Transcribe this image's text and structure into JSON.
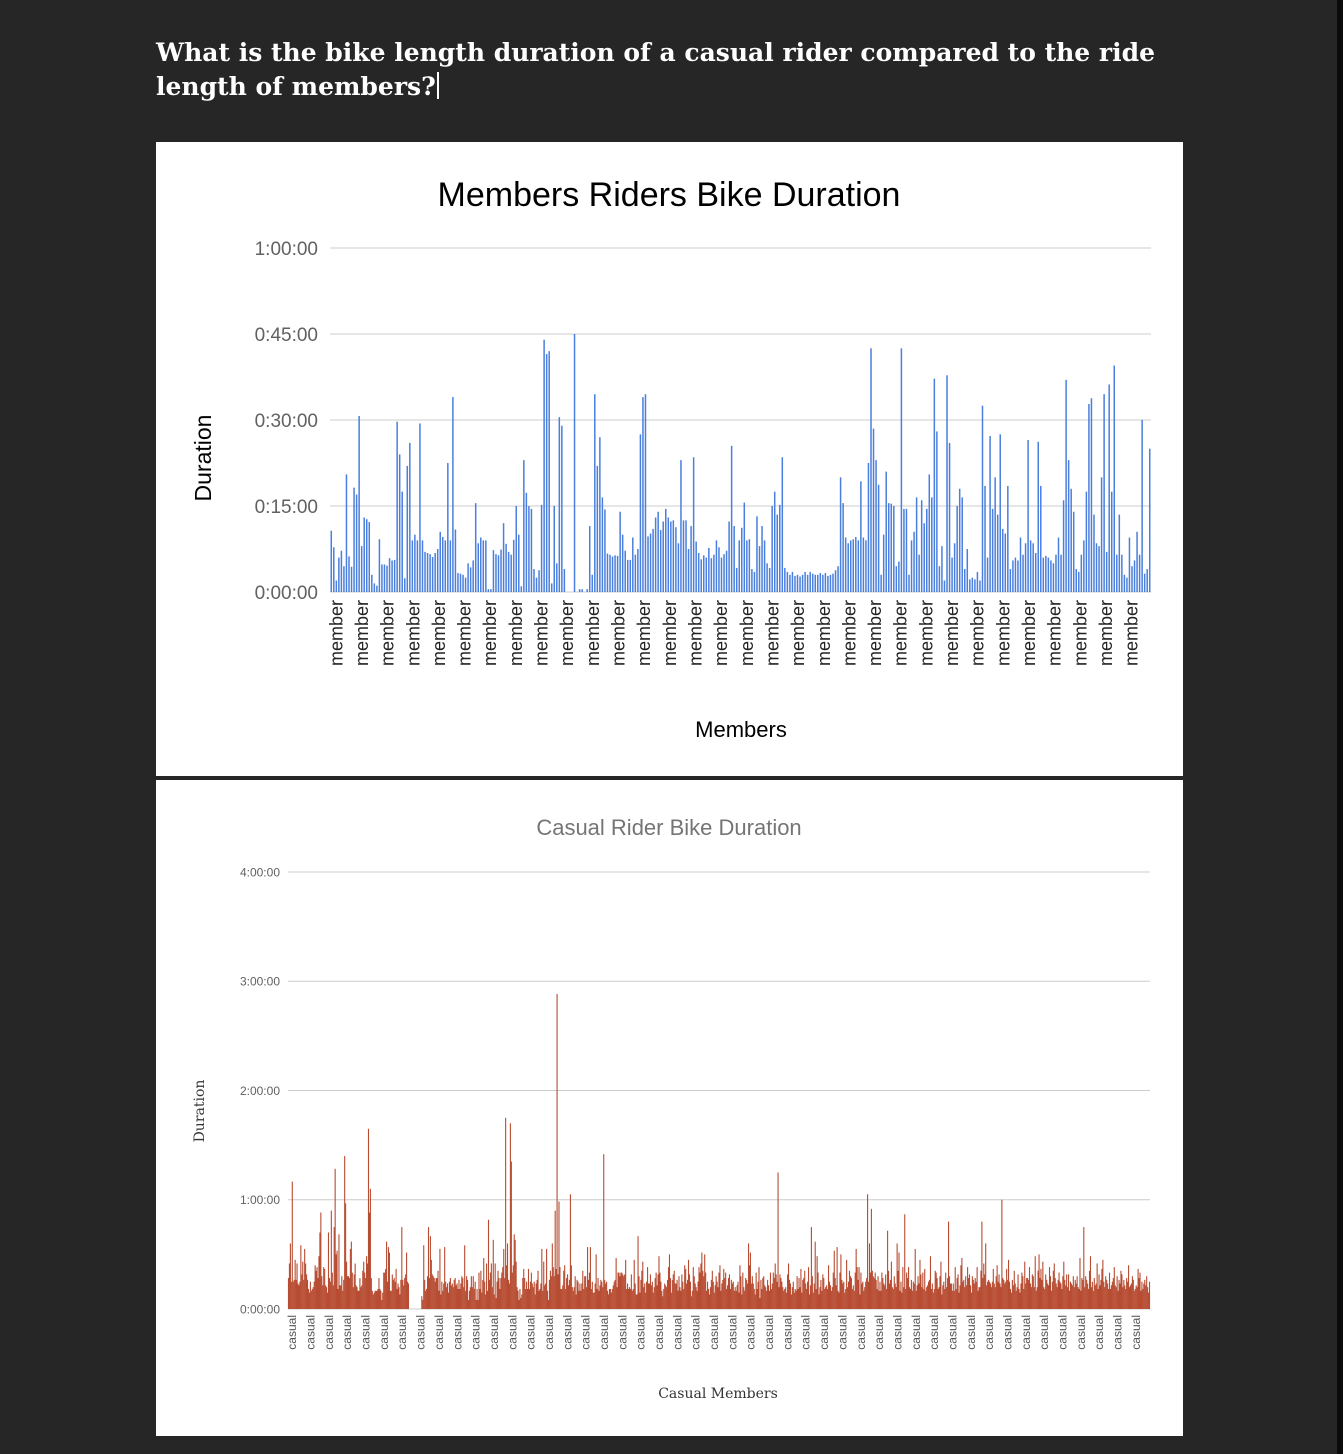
{
  "heading": "What is the bike length duration of a casual rider compared to the ride length of members?",
  "colors": {
    "page_bg": "#262626",
    "card_bg": "#ffffff",
    "member_bar": "#4a7fdd",
    "casual_bar": "#b74c32",
    "grid": "#cccccc"
  },
  "chart_data": [
    {
      "type": "bar",
      "title": "Members Riders Bike Duration",
      "xlabel": "Members",
      "ylabel": "Duration",
      "y_unit": "minutes",
      "ylim": [
        0,
        60
      ],
      "yticks": [
        0,
        15,
        30,
        45,
        60
      ],
      "ytick_labels": [
        "0:00:00",
        "0:15:00",
        "0:30:00",
        "0:45:00",
        "1:00:00"
      ],
      "category_label": "member",
      "category_label_count": 32,
      "grid": true,
      "legend": "none",
      "values": [
        10.7,
        7.8,
        2,
        6,
        7.2,
        4.5,
        20.5,
        6.2,
        4.4,
        18.2,
        17,
        30.7,
        8,
        13,
        12.7,
        12.2,
        3,
        1.5,
        1.1,
        9.2,
        4.8,
        4.8,
        4.6,
        5.9,
        5.5,
        5.6,
        29.7,
        24,
        17.5,
        2.4,
        22,
        26,
        9,
        10,
        9,
        29.4,
        9,
        7,
        6.8,
        6.6,
        6.1,
        6.8,
        7.5,
        10.5,
        9.6,
        9,
        22.5,
        9,
        34,
        10.9,
        3.3,
        3.2,
        3,
        2.5,
        5,
        4.3,
        5.5,
        15.5,
        8.5,
        9.5,
        9,
        9,
        0.5,
        0.5,
        7.3,
        6.6,
        6.4,
        7.4,
        12,
        8.4,
        7,
        6.5,
        9.1,
        15,
        10,
        1,
        23,
        17.3,
        15,
        14.5,
        4,
        2.5,
        3.8,
        15.2,
        44,
        41.5,
        42,
        1.5,
        15,
        5,
        30.5,
        29,
        4,
        0,
        0,
        0,
        45,
        0,
        0.5,
        0.5,
        0,
        0.5,
        11.5,
        3,
        34.5,
        22,
        27,
        16.5,
        14.4,
        6.7,
        6.5,
        6.2,
        6.4,
        6.3,
        14,
        10,
        7.2,
        5.6,
        5.6,
        9.5,
        6.5,
        7.5,
        27.5,
        34,
        34.5,
        9.7,
        10.2,
        11,
        13,
        14,
        10.8,
        12.3,
        14.5,
        13,
        12.3,
        12.5,
        11.3,
        8.5,
        23,
        12.5,
        12.5,
        7.5,
        11.5,
        23.5,
        8.8,
        6.8,
        5.7,
        6.4,
        6,
        7.7,
        5.9,
        6.5,
        9,
        7.8,
        6,
        6.6,
        7.2,
        12.3,
        25.5,
        11.5,
        4.2,
        9,
        11.2,
        15.6,
        9,
        9.2,
        4,
        3.5,
        13.2,
        8,
        11.5,
        9,
        5,
        4.2,
        15,
        17.5,
        13.5,
        15.2,
        23.5,
        4.2,
        3.5,
        3,
        3.5,
        2.8,
        3,
        2.7,
        3,
        3.5,
        3,
        3.5,
        3.2,
        3,
        3,
        3.3,
        3,
        3.3,
        2.8,
        3,
        3.2,
        3.8,
        4.5,
        20,
        15.5,
        9.5,
        8.5,
        9,
        9.2,
        9.6,
        9,
        19.3,
        9.5,
        9,
        22.5,
        42.5,
        28.5,
        23,
        18.7,
        3,
        10,
        21,
        15.5,
        15.4,
        15,
        4.5,
        5.3,
        42.5,
        14.5,
        14.5,
        3,
        9,
        10.5,
        16.5,
        6.5,
        16,
        12,
        14.5,
        20.5,
        16.5,
        37.2,
        28,
        4.5,
        8,
        2,
        37.8,
        26,
        6,
        8.5,
        15,
        18,
        16.5,
        4,
        7.5,
        2.2,
        2.5,
        2.2,
        3.5,
        2,
        32.5,
        18.5,
        6,
        27.2,
        14.5,
        20,
        13.5,
        27.5,
        11,
        10.2,
        18.5,
        4,
        5.5,
        6,
        5.5,
        9.5,
        6.5,
        8.5,
        26.5,
        9,
        8.5,
        6.8,
        26.2,
        18.5,
        6,
        6.3,
        6,
        5.5,
        5,
        6.5,
        9.5,
        6.5,
        16,
        37,
        23,
        18,
        14,
        4,
        3.5,
        6.5,
        9,
        17.5,
        32.8,
        33.8,
        13.5,
        8.5,
        8,
        20,
        34.5,
        7,
        36.2,
        17.5,
        39.5,
        6.5,
        13.5,
        6.5,
        3,
        2.5,
        9.5,
        4.5,
        5.5,
        10.5,
        6.5,
        30,
        3.2,
        4,
        25
      ]
    },
    {
      "type": "bar",
      "title": "Casual Rider Bike Duration",
      "xlabel": "Casual Members",
      "ylabel": "Duration",
      "y_unit": "minutes",
      "ylim": [
        0,
        240
      ],
      "yticks": [
        0,
        60,
        120,
        180,
        240
      ],
      "ytick_labels": [
        "0:00:00",
        "1:00:00",
        "2:00:00",
        "3:00:00",
        "4:00:00"
      ],
      "category_label": "casual",
      "category_label_count": 47,
      "grid": true,
      "legend": "none",
      "values": [
        17,
        25,
        36,
        15,
        70,
        15,
        16,
        27,
        16,
        25,
        14,
        13,
        15,
        35,
        19,
        26,
        16,
        33,
        25,
        19,
        16,
        11,
        9,
        15,
        10,
        11,
        12,
        15,
        24,
        21,
        23,
        17,
        29,
        42,
        53,
        18,
        13,
        23,
        22,
        13,
        12,
        9,
        42,
        17,
        15,
        54,
        20,
        13,
        45,
        77,
        30,
        32,
        11,
        41,
        13,
        13,
        18,
        10,
        16,
        84,
        58,
        26,
        18,
        18,
        17,
        33,
        37,
        20,
        12,
        19,
        25,
        13,
        12,
        10,
        10,
        17,
        12,
        13,
        21,
        26,
        20,
        17,
        29,
        25,
        99,
        53,
        66,
        17,
        10,
        8,
        9,
        10,
        10,
        10,
        11,
        17,
        11,
        10,
        5,
        9,
        20,
        20,
        22,
        37,
        15,
        34,
        31,
        10,
        10,
        19,
        16,
        17,
        15,
        22,
        11,
        14,
        12,
        8,
        16,
        45,
        16,
        13,
        17,
        19,
        31,
        15,
        14,
        0,
        0,
        0,
        0,
        0,
        0,
        0,
        0,
        0,
        0,
        0,
        0,
        0,
        7,
        5,
        35,
        16,
        10,
        11,
        18,
        45,
        17,
        40,
        27,
        19,
        18,
        17,
        15,
        17,
        17,
        21,
        10,
        33,
        8,
        15,
        10,
        14,
        34,
        15,
        12,
        14,
        9,
        15,
        17,
        13,
        14,
        12,
        16,
        17,
        13,
        14,
        11,
        16,
        11,
        14,
        18,
        17,
        12,
        35,
        10,
        18,
        16,
        5,
        10,
        12,
        18,
        12,
        18,
        11,
        15,
        5,
        11,
        5,
        20,
        11,
        21,
        9,
        16,
        28,
        15,
        8,
        25,
        10,
        49,
        16,
        20,
        25,
        12,
        38,
        8,
        25,
        6,
        15,
        21,
        17,
        11,
        17,
        20,
        23,
        33,
        17,
        105,
        24,
        36,
        16,
        14,
        102,
        81,
        20,
        24,
        41,
        38,
        26,
        12,
        10,
        5,
        11,
        6,
        8,
        17,
        22,
        17,
        11,
        15,
        11,
        22,
        11,
        15,
        20,
        14,
        12,
        15,
        8,
        14,
        16,
        21,
        10,
        11,
        14,
        33,
        10,
        26,
        13,
        14,
        33,
        10,
        5,
        16,
        21,
        18,
        36,
        23,
        18,
        54,
        22,
        173,
        19,
        59,
        23,
        11,
        11,
        13,
        21,
        24,
        11,
        17,
        19,
        13,
        16,
        63,
        24,
        12,
        10,
        12,
        18,
        8,
        16,
        15,
        10,
        14,
        10,
        14,
        21,
        11,
        18,
        18,
        12,
        34,
        16,
        20,
        34,
        11,
        15,
        9,
        9,
        14,
        30,
        11,
        17,
        10,
        13,
        16,
        15,
        12,
        85,
        16,
        14,
        15,
        10,
        8,
        11,
        11,
        9,
        11,
        13,
        15,
        16,
        28,
        12,
        20,
        20,
        18,
        20,
        20,
        19,
        18,
        19,
        27,
        11,
        14,
        11,
        12,
        11,
        19,
        10,
        11,
        27,
        14,
        8,
        8,
        40,
        18,
        9,
        16,
        21,
        26,
        12,
        14,
        9,
        15,
        23,
        14,
        14,
        19,
        13,
        15,
        9,
        12,
        17,
        20,
        13,
        19,
        29,
        20,
        15,
        10,
        7,
        11,
        14,
        13,
        12,
        16,
        23,
        30,
        17,
        9,
        16,
        19,
        21,
        14,
        14,
        16,
        10,
        18,
        12,
        10,
        19,
        15,
        11,
        24,
        22,
        14,
        16,
        27,
        19,
        15,
        7,
        10,
        23,
        18,
        14,
        12,
        10,
        15,
        23,
        20,
        25,
        31,
        21,
        18,
        30,
        20,
        10,
        15,
        11,
        8,
        12,
        16,
        21,
        15,
        9,
        13,
        18,
        15,
        12,
        20,
        24,
        10,
        14,
        16,
        22,
        17,
        20,
        11,
        13,
        17,
        19,
        11,
        16,
        14,
        15,
        10,
        12,
        10,
        13,
        15,
        9,
        24,
        18,
        8,
        20,
        12,
        10,
        17,
        16,
        14,
        36,
        24,
        31,
        14,
        18,
        14,
        11,
        8,
        20,
        11,
        15,
        23,
        6,
        16,
        11,
        17,
        18,
        13,
        12,
        10,
        16,
        13,
        10,
        20,
        11,
        14,
        20,
        17,
        25,
        19,
        15,
        75,
        12,
        19,
        17,
        15,
        12,
        10,
        11,
        12,
        9,
        19,
        25,
        16,
        14,
        8,
        12,
        15,
        9,
        11,
        10,
        18,
        11,
        17,
        12,
        22,
        9,
        16,
        17,
        21,
        14,
        11,
        15,
        23,
        8,
        13,
        45,
        18,
        9,
        14,
        37,
        11,
        29,
        20,
        8,
        12,
        16,
        10,
        19,
        17,
        11,
        12,
        13,
        11,
        24,
        15,
        13,
        10,
        12,
        20,
        32,
        17,
        13,
        34,
        10,
        9,
        20,
        30,
        16,
        14,
        15,
        9,
        11,
        27,
        12,
        15,
        21,
        18,
        17,
        11,
        13,
        10,
        20,
        33,
        23,
        16,
        23,
        8,
        20,
        14,
        15,
        10,
        12,
        15,
        17,
        63,
        15,
        36,
        20,
        55,
        21,
        18,
        17,
        20,
        16,
        11,
        18,
        10,
        15,
        10,
        20,
        17,
        14,
        13,
        19,
        11,
        43,
        21,
        14,
        16,
        26,
        12,
        11,
        18,
        14,
        12,
        36,
        21,
        31,
        10,
        15,
        9,
        23,
        12,
        52,
        11,
        20,
        17,
        23,
        12,
        11,
        16,
        10,
        15,
        14,
        33,
        10,
        13,
        18,
        14,
        27,
        19,
        12,
        20,
        11,
        22,
        10,
        12,
        13,
        15,
        16,
        29,
        11,
        14,
        9,
        11,
        21,
        20,
        17,
        11,
        12,
        18,
        26,
        8,
        13,
        15,
        11,
        20,
        12,
        17,
        48,
        18,
        14,
        14,
        10,
        14,
        10,
        23,
        11,
        17,
        19,
        9,
        13,
        24,
        28,
        15,
        16,
        12,
        18,
        13,
        23,
        17,
        19,
        13,
        9,
        18,
        16,
        14,
        17,
        15,
        23,
        10,
        12,
        12,
        21,
        48,
        17,
        25,
        19,
        36,
        13,
        15,
        16,
        15,
        14,
        12,
        15,
        22,
        14,
        12,
        18,
        24,
        15,
        19,
        14,
        12,
        60,
        17,
        16,
        14,
        15,
        22,
        16,
        27,
        15,
        11,
        9,
        16,
        13,
        21,
        14,
        10,
        12,
        19,
        11,
        9,
        14,
        20,
        18,
        11,
        26,
        14,
        17,
        17,
        16,
        23,
        14,
        12,
        19,
        18,
        12,
        29,
        10,
        12,
        21,
        30,
        17,
        22,
        16,
        26,
        12,
        11,
        19,
        16,
        14,
        13,
        23,
        18,
        10,
        15,
        21,
        25,
        17,
        14,
        12,
        16,
        20,
        15,
        14,
        11,
        18,
        26,
        16,
        13,
        19,
        12,
        19,
        10,
        15,
        14,
        13,
        18,
        12,
        16,
        14,
        18,
        12,
        11,
        28,
        10,
        17,
        16,
        45,
        12,
        18,
        16,
        14,
        11,
        21,
        29,
        12,
        15,
        10,
        17,
        13,
        14,
        25,
        11,
        19,
        13,
        16,
        22,
        27,
        15,
        12,
        18,
        16,
        14,
        11,
        20,
        11,
        13,
        15,
        17,
        23,
        13,
        12,
        18,
        10,
        16,
        14,
        21,
        19,
        12,
        16,
        13,
        11,
        17,
        15,
        24,
        12,
        13,
        14,
        18,
        16,
        10,
        11,
        13,
        12,
        22,
        17,
        20,
        10,
        15,
        11,
        14,
        16,
        13,
        18,
        12,
        9,
        15
      ]
    }
  ]
}
